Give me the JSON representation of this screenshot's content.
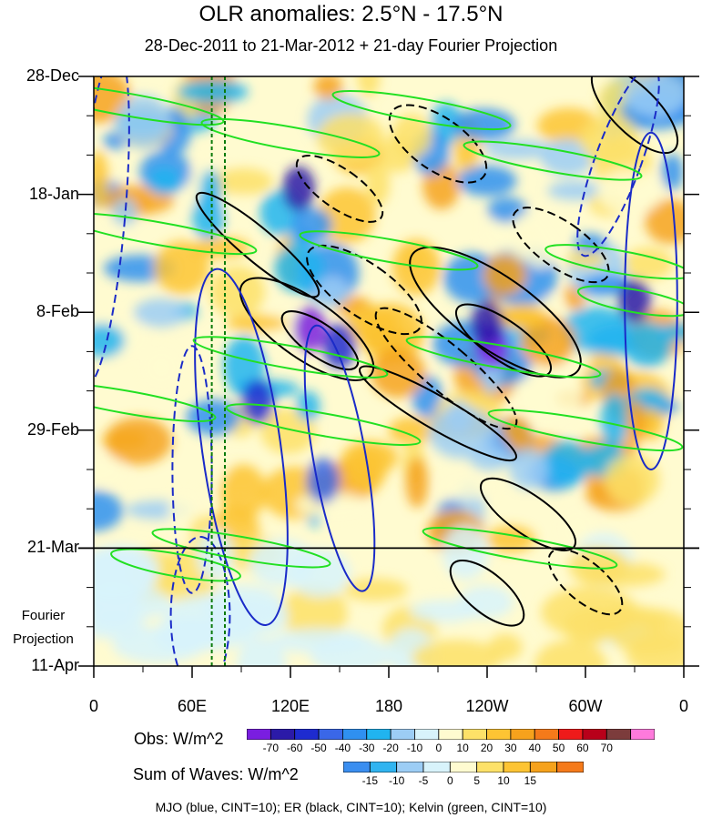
{
  "chart_data": {
    "type": "heatmap",
    "title": "OLR anomalies: 2.5°N - 17.5°N",
    "subtitle": "28-Dec-2011 to 21-Mar-2012 + 21-day Fourier Projection",
    "y_ticks": [
      "28-Dec",
      "18-Jan",
      "8-Feb",
      "29-Feb",
      "21-Mar",
      "11-Apr"
    ],
    "x_ticks": [
      "0",
      "60E",
      "120E",
      "180",
      "120W",
      "60W",
      "0"
    ],
    "x_range_deg_east": [
      0,
      360
    ],
    "y_range_days": [
      0,
      105
    ],
    "observation_end": "21-Mar",
    "projection_label": [
      "Fourier",
      "Projection"
    ],
    "reference_lines_deg_east": [
      72,
      80
    ],
    "obs_legend": {
      "title": "Obs: W/m^2",
      "levels": [
        "-70",
        "-60",
        "-50",
        "-40",
        "-30",
        "-20",
        "-10",
        "0",
        "10",
        "20",
        "30",
        "40",
        "50",
        "60",
        "70"
      ],
      "colors": [
        "#7a1ee0",
        "#2b1aa8",
        "#1e2bd0",
        "#3a67e8",
        "#2f90f0",
        "#20b4f0",
        "#9ccdf5",
        "#d8f3fb",
        "#fffbd0",
        "#fde168",
        "#fdc433",
        "#f6a21c",
        "#f57a1a",
        "#ee1a1a",
        "#b8001a",
        "#7c3c3c",
        "#ff7adc"
      ]
    },
    "waves_legend": {
      "title": "Sum of Waves: W/m^2",
      "levels": [
        "-15",
        "-10",
        "-5",
        "0",
        "5",
        "10",
        "15"
      ],
      "colors": [
        "#3a8ef0",
        "#30b4f0",
        "#9ccdf5",
        "#d8f3fb",
        "#fffbd0",
        "#fde168",
        "#fdc433",
        "#f6a21c",
        "#f57a1a"
      ]
    },
    "contour_series": [
      {
        "name": "MJO",
        "color": "#1a2bc8",
        "cint": 10
      },
      {
        "name": "ER",
        "color": "#000000",
        "cint": 10
      },
      {
        "name": "Kelvin",
        "color": "#22e022",
        "cint": 10
      }
    ]
  },
  "footer": "MJO (blue, CINT=10); ER (black, CINT=10); Kelvin (green, CINT=10)"
}
